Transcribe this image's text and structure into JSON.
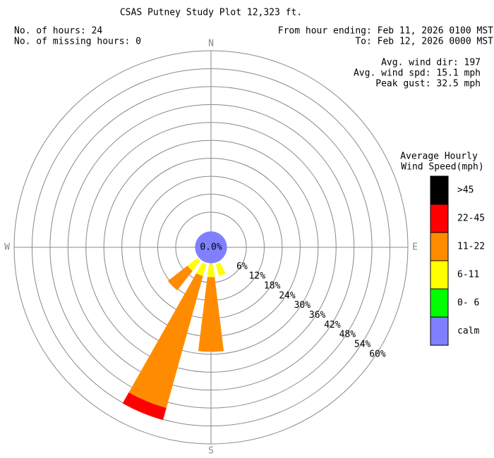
{
  "chart_data": {
    "type": "windrose",
    "title": "CSAS Putney Study Plot 12,323 ft.",
    "info_left": [
      "No. of hours: 24",
      "No. of missing hours: 0"
    ],
    "info_right": [
      "From hour ending: Feb 11, 2026 0100 MST",
      "To: Feb 12, 2026 0000 MST"
    ],
    "stats": [
      "Avg. wind dir: 197",
      "Avg. wind spd: 15.1 mph",
      "Peak gust: 32.5 mph"
    ],
    "legend_title": [
      "Average Hourly",
      "Wind Speed(mph)"
    ],
    "categories": [
      "N",
      null,
      null,
      null,
      "E",
      null,
      null,
      null,
      "S",
      null,
      null,
      null,
      "W",
      null,
      null,
      null
    ],
    "series": [
      {
        "name": "0- 6",
        "color": "#00ff00",
        "values": [
          0,
          0,
          0,
          0,
          0,
          0,
          0,
          0,
          0,
          0,
          0,
          0,
          0,
          0,
          0,
          0
        ]
      },
      {
        "name": "6-11",
        "color": "#ffff00",
        "values": [
          0,
          0,
          0,
          0,
          0,
          0,
          0,
          4.2,
          4.2,
          4.2,
          4.2,
          0,
          0,
          0,
          0,
          0
        ]
      },
      {
        "name": "11-22",
        "color": "#ff8c00",
        "values": [
          0,
          0,
          0,
          0,
          0,
          0,
          0,
          0,
          25,
          45.8,
          8.3,
          0,
          0,
          0,
          0,
          0
        ]
      },
      {
        "name": "22-45",
        "color": "#ff0000",
        "values": [
          0,
          0,
          0,
          0,
          0,
          0,
          0,
          0,
          0,
          4.2,
          0,
          0,
          0,
          0,
          0,
          0
        ]
      },
      {
        "name": ">45",
        "color": "#000000",
        "values": [
          0,
          0,
          0,
          0,
          0,
          0,
          0,
          0,
          0,
          0,
          0,
          0,
          0,
          0,
          0,
          0
        ]
      }
    ],
    "calm": {
      "name": "calm",
      "color": "#8080ff",
      "value": 0,
      "label": "0.0%"
    },
    "rlim": [
      0,
      60
    ],
    "rticks": [
      {
        "value": 6,
        "label": "6%"
      },
      {
        "value": 12,
        "label": "12%"
      },
      {
        "value": 18,
        "label": "18%"
      },
      {
        "value": 24,
        "label": "24%"
      },
      {
        "value": 30,
        "label": "30%"
      },
      {
        "value": 36,
        "label": "36%"
      },
      {
        "value": 42,
        "label": "42%"
      },
      {
        "value": 48,
        "label": "48%"
      },
      {
        "value": 54,
        "label": "54%"
      },
      {
        "value": 60,
        "label": "60%"
      }
    ]
  }
}
